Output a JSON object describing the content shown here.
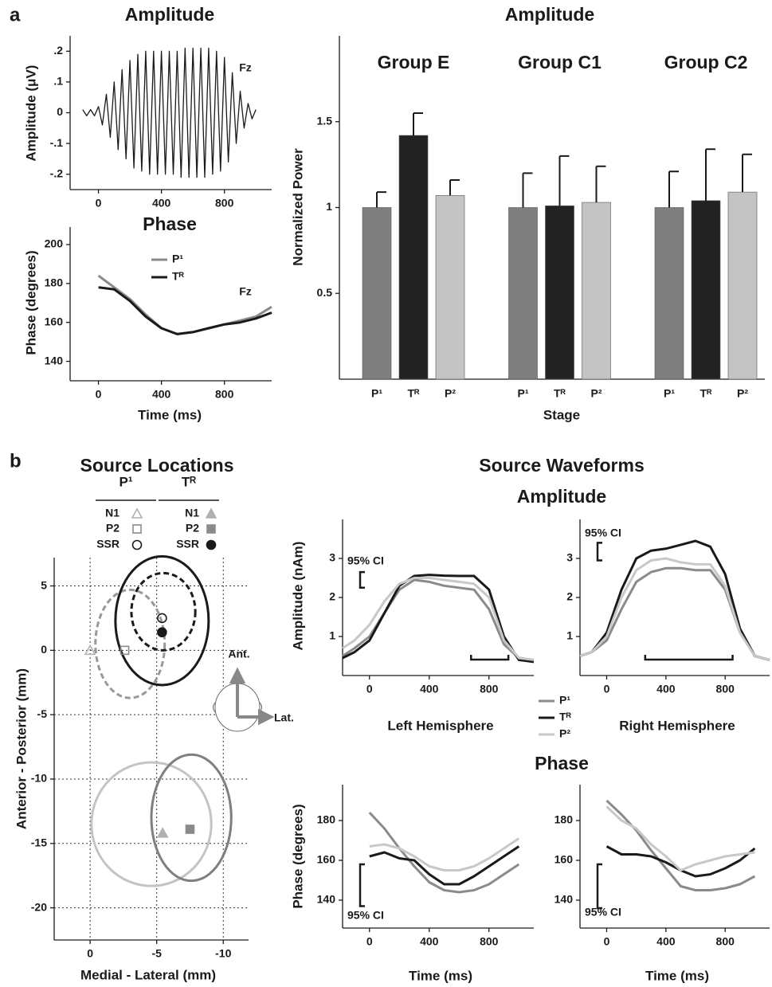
{
  "panel_labels": [
    "a",
    "b"
  ],
  "source_waveforms": {
    "title": "Source Waveforms",
    "amplitude_title": "Amplitude",
    "phase_title": "Phase"
  },
  "chart_data": [
    {
      "type": "line",
      "title": "Amplitude",
      "y_label": "Amplitude (μV)",
      "annotation": "Fz",
      "x": [
        -100,
        -75,
        -50,
        -25,
        0,
        25,
        50,
        75,
        100,
        125,
        150,
        175,
        200,
        225,
        250,
        275,
        300,
        325,
        350,
        375,
        400,
        425,
        450,
        475,
        500,
        525,
        550,
        575,
        600,
        625,
        650,
        675,
        700,
        725,
        750,
        775,
        800,
        825,
        850,
        875,
        900,
        925,
        950,
        975,
        1000
      ],
      "series": [
        {
          "color": "#1a1a1a",
          "values": [
            0.01,
            -0.01,
            0.01,
            -0.01,
            0.02,
            -0.04,
            0.06,
            -0.08,
            0.1,
            -0.12,
            0.14,
            -0.15,
            0.17,
            -0.18,
            0.19,
            -0.19,
            0.2,
            -0.2,
            0.2,
            -0.2,
            0.2,
            -0.2,
            0.2,
            -0.2,
            0.2,
            -0.21,
            0.21,
            -0.21,
            0.21,
            -0.21,
            0.21,
            -0.21,
            0.21,
            -0.2,
            0.2,
            -0.19,
            0.18,
            -0.16,
            0.13,
            -0.1,
            0.07,
            -0.05,
            0.03,
            -0.02,
            0.01
          ]
        }
      ],
      "xlim": [
        -180,
        1100
      ],
      "xticks": [
        0,
        400,
        800
      ],
      "ylim": [
        -0.25,
        0.25
      ],
      "yticks": [
        {
          "value": 0.2,
          "label": ".2"
        },
        {
          "value": 0.1,
          "label": ".1"
        },
        0,
        {
          "value": -0.1,
          "label": "-.1"
        },
        {
          "value": -0.2,
          "label": "-.2"
        }
      ]
    },
    {
      "type": "line",
      "title": "Phase",
      "y_label": "Phase (degrees)",
      "x_label": "Time (ms)",
      "annotation": "Fz",
      "legend": true,
      "x": [
        0,
        100,
        200,
        300,
        400,
        500,
        600,
        700,
        800,
        900,
        1000,
        1100
      ],
      "series": [
        {
          "name": "P¹",
          "color": "#8a8a8a",
          "values": [
            184,
            178,
            172,
            164,
            157,
            154,
            155,
            157,
            159,
            161,
            163,
            168
          ]
        },
        {
          "name": "Tᴿ",
          "color": "#1a1a1a",
          "values": [
            178,
            177,
            171,
            163,
            157,
            154,
            155,
            157,
            159,
            160,
            162,
            165
          ]
        }
      ],
      "xlim": [
        -180,
        1100
      ],
      "xticks": [
        0,
        400,
        800
      ],
      "ylim": [
        130,
        209
      ],
      "yticks": [
        140,
        160,
        180,
        200
      ]
    },
    {
      "type": "bar",
      "title": "Amplitude",
      "y_label": "Normalized Power",
      "x_label": "Stage",
      "groups": [
        "Group E",
        "Group C1",
        "Group C2"
      ],
      "series": [
        {
          "name": "P¹",
          "color": "#7f7f7f",
          "values": [
            1.0,
            1.0,
            1.0
          ],
          "errors": [
            0.09,
            0.2,
            0.21
          ]
        },
        {
          "name": "Tᴿ",
          "color": "#222222",
          "values": [
            1.42,
            1.01,
            1.04
          ],
          "errors": [
            0.13,
            0.29,
            0.3
          ]
        },
        {
          "name": "P²",
          "color": "#c4c4c4",
          "values": [
            1.07,
            1.03,
            1.09
          ],
          "errors": [
            0.09,
            0.21,
            0.22
          ]
        }
      ],
      "ylim": [
        0,
        2
      ],
      "yticks": [
        0.5,
        1,
        1.5
      ]
    },
    {
      "type": "scatter",
      "title": "Source Locations",
      "x_label": "Medial - Lateral (mm)",
      "y_label": "Anterior - Posterior (mm)",
      "grid": true,
      "xlim": [
        2.7,
        -11.9
      ],
      "xticks": [
        0,
        -5,
        -10
      ],
      "ylim": [
        -22.5,
        7.2
      ],
      "yticks": [
        5,
        0,
        -5,
        -10,
        -15,
        -20
      ],
      "series": [
        {
          "name": "P¹",
          "filled": false,
          "points": [
            {
              "label": "N1",
              "marker": "triangle",
              "color": "#b0b0b0",
              "x": 0,
              "y": 0
            },
            {
              "label": "P2",
              "marker": "square",
              "color": "#8a8a8a",
              "x": -2.6,
              "y": 0
            },
            {
              "label": "SSR",
              "marker": "circle",
              "color": "#1a1a1a",
              "x": -5.4,
              "y": 2.5
            }
          ]
        },
        {
          "name": "Tᴿ",
          "filled": true,
          "points": [
            {
              "label": "N1",
              "marker": "triangle",
              "color": "#b0b0b0",
              "x": -5.45,
              "y": -14.2
            },
            {
              "label": "P2",
              "marker": "square",
              "color": "#8a8a8a",
              "x": -7.5,
              "y": -13.9
            },
            {
              "label": "SSR",
              "marker": "circle",
              "color": "#1a1a1a",
              "x": -5.4,
              "y": 1.4
            }
          ]
        }
      ],
      "ellipses": [
        {
          "cx": -3,
          "cy": 0.5,
          "rx": 2.6,
          "ry": 4.2,
          "color": "#999999",
          "dashed": true
        },
        {
          "cx": -5.4,
          "cy": 2.3,
          "rx": 3.5,
          "ry": 5,
          "color": "#1a1a1a",
          "dashed": false
        },
        {
          "cx": -5.5,
          "cy": 3,
          "rx": 2.4,
          "ry": 3,
          "color": "#1a1a1a",
          "dashed": true
        },
        {
          "cx": -4.6,
          "cy": -13.5,
          "rx": 4.5,
          "ry": 4.8,
          "color": "#c4c4c4",
          "dashed": false
        },
        {
          "cx": -7.6,
          "cy": -13,
          "rx": 3,
          "ry": 4.9,
          "color": "#7f7f7f",
          "dashed": false
        }
      ],
      "orientation": {
        "anterior": "Ant.",
        "lateral": "Lat."
      }
    },
    {
      "type": "line",
      "y_label": "Amplitude (nAm)",
      "hemisphere": "Left Hemisphere",
      "legend": true,
      "x": [
        -180,
        -100,
        0,
        100,
        200,
        300,
        400,
        500,
        600,
        700,
        800,
        900,
        1000,
        1100
      ],
      "series": [
        {
          "name": "P¹",
          "color": "#8a8a8a",
          "values": [
            0.5,
            0.7,
            1.0,
            1.6,
            2.2,
            2.45,
            2.4,
            2.3,
            2.25,
            2.2,
            1.7,
            0.8,
            0.45,
            0.4
          ]
        },
        {
          "name": "Tᴿ",
          "color": "#1a1a1a",
          "values": [
            0.45,
            0.6,
            0.9,
            1.6,
            2.3,
            2.55,
            2.58,
            2.56,
            2.55,
            2.55,
            2.2,
            1.0,
            0.4,
            0.35
          ]
        },
        {
          "name": "P²",
          "color": "#c8c8c8",
          "values": [
            0.7,
            0.9,
            1.3,
            1.9,
            2.35,
            2.5,
            2.5,
            2.45,
            2.4,
            2.35,
            2.0,
            0.9,
            0.45,
            0.4
          ]
        }
      ],
      "ci": {
        "label": "95% CI",
        "range": [
          2.25,
          2.65
        ]
      },
      "significance": [
        680,
        930
      ],
      "xlim": [
        -180,
        1100
      ],
      "xticks": [
        0,
        400,
        800
      ],
      "ylim": [
        0,
        4
      ],
      "yticks": [
        1,
        2,
        3
      ]
    },
    {
      "type": "line",
      "hemisphere": "Right Hemisphere",
      "x": [
        -180,
        -100,
        0,
        100,
        200,
        300,
        400,
        500,
        600,
        700,
        800,
        900,
        1000,
        1100
      ],
      "series": [
        {
          "name": "P¹",
          "color": "#8a8a8a",
          "values": [
            0.5,
            0.6,
            0.9,
            1.7,
            2.4,
            2.65,
            2.75,
            2.75,
            2.7,
            2.7,
            2.2,
            1.1,
            0.5,
            0.4
          ]
        },
        {
          "name": "Tᴿ",
          "color": "#1a1a1a",
          "values": [
            0.5,
            0.6,
            1.1,
            2.2,
            3.0,
            3.2,
            3.25,
            3.35,
            3.45,
            3.3,
            2.6,
            1.2,
            0.5,
            0.4
          ]
        },
        {
          "name": "P²",
          "color": "#c8c8c8",
          "values": [
            0.5,
            0.6,
            1.0,
            2.0,
            2.7,
            2.95,
            3.0,
            2.9,
            2.85,
            2.85,
            2.3,
            1.1,
            0.5,
            0.4
          ]
        }
      ],
      "ci": {
        "label": "95% CI",
        "range": [
          2.95,
          3.4
        ]
      },
      "significance": [
        260,
        850
      ],
      "xlim": [
        -180,
        1100
      ],
      "xticks": [
        0,
        400,
        800
      ],
      "ylim": [
        0,
        4
      ],
      "yticks": [
        1,
        2,
        3
      ]
    },
    {
      "type": "line",
      "y_label": "Phase (degrees)",
      "x_label": "Time (ms)",
      "x": [
        0,
        100,
        200,
        300,
        400,
        500,
        600,
        700,
        800,
        900,
        1000
      ],
      "series": [
        {
          "name": "P¹",
          "color": "#8a8a8a",
          "values": [
            184,
            176,
            166,
            157,
            149,
            145,
            144,
            145,
            148,
            153,
            158
          ]
        },
        {
          "name": "Tᴿ",
          "color": "#1a1a1a",
          "values": [
            162,
            164,
            161,
            160,
            153,
            148,
            148,
            152,
            157,
            162,
            167
          ]
        },
        {
          "name": "P²",
          "color": "#c8c8c8",
          "values": [
            167,
            168,
            166,
            162,
            157,
            155,
            155,
            157,
            161,
            166,
            171
          ]
        }
      ],
      "ci": {
        "label": "95% CI",
        "range": [
          137,
          158
        ]
      },
      "xlim": [
        -180,
        1100
      ],
      "xticks": [
        0,
        400,
        800
      ],
      "ylim": [
        126,
        198
      ],
      "yticks": [
        140,
        160,
        180
      ]
    },
    {
      "type": "line",
      "x_label": "Time (ms)",
      "x": [
        0,
        100,
        200,
        300,
        400,
        500,
        600,
        700,
        800,
        900,
        1000
      ],
      "series": [
        {
          "name": "P¹",
          "color": "#8a8a8a",
          "values": [
            190,
            183,
            175,
            165,
            156,
            147,
            145,
            145,
            146,
            148,
            152
          ]
        },
        {
          "name": "Tᴿ",
          "color": "#1a1a1a",
          "values": [
            167,
            163,
            163,
            162,
            159,
            155,
            152,
            153,
            156,
            160,
            166
          ]
        },
        {
          "name": "P²",
          "color": "#c8c8c8",
          "values": [
            187,
            180,
            176,
            168,
            162,
            155,
            158,
            160,
            162,
            163,
            164
          ]
        }
      ],
      "ci": {
        "label": "95% CI",
        "range": [
          136,
          158
        ]
      },
      "xlim": [
        -180,
        1100
      ],
      "xticks": [
        0,
        400,
        800
      ],
      "ylim": [
        126,
        198
      ],
      "yticks": [
        140,
        160,
        180
      ]
    }
  ]
}
